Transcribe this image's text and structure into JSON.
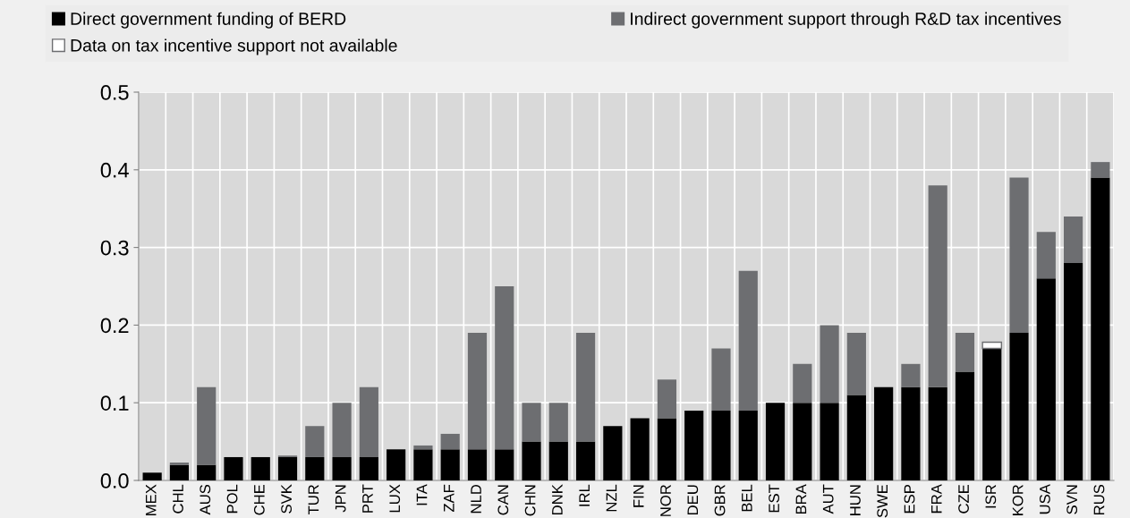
{
  "chart_data": {
    "type": "bar",
    "stacked": true,
    "categories": [
      "MEX",
      "CHL",
      "AUS",
      "POL",
      "CHE",
      "SVK",
      "TUR",
      "JPN",
      "PRT",
      "LUX",
      "ITA",
      "ZAF",
      "NLD",
      "CAN",
      "CHN",
      "DNK",
      "IRL",
      "NZL",
      "FIN",
      "NOR",
      "DEU",
      "GBR",
      "BEL",
      "EST",
      "BRA",
      "AUT",
      "HUN",
      "SWE",
      "ESP",
      "FRA",
      "CZE",
      "ISR",
      "KOR",
      "USA",
      "SVN",
      "RUS"
    ],
    "series": [
      {
        "name": "Direct government funding of BERD",
        "color": "#000000",
        "values": [
          0.01,
          0.02,
          0.02,
          0.03,
          0.03,
          0.03,
          0.03,
          0.03,
          0.03,
          0.04,
          0.04,
          0.04,
          0.04,
          0.04,
          0.05,
          0.05,
          0.05,
          0.07,
          0.08,
          0.08,
          0.09,
          0.09,
          0.09,
          0.1,
          0.1,
          0.1,
          0.11,
          0.12,
          0.12,
          0.12,
          0.14,
          0.17,
          0.19,
          0.26,
          0.28,
          0.39
        ]
      },
      {
        "name": "Indirect government support through R&D tax incentives",
        "color": "#6d6e71",
        "values": [
          0,
          0.003,
          0.1,
          0,
          0,
          0.002,
          0.04,
          0.07,
          0.09,
          0,
          0.005,
          0.02,
          0.15,
          0.21,
          0.05,
          0.05,
          0.14,
          0,
          0,
          0.05,
          0,
          0.08,
          0.18,
          0,
          0.05,
          0.1,
          0.08,
          0,
          0.03,
          0.26,
          0.05,
          null,
          0.2,
          0.06,
          0.06,
          0.02
        ]
      },
      {
        "name": "Data on tax incentive support not available",
        "color": "#ffffff",
        "values": [
          null,
          null,
          null,
          null,
          null,
          null,
          null,
          null,
          null,
          null,
          null,
          null,
          null,
          null,
          null,
          null,
          null,
          null,
          null,
          null,
          null,
          null,
          null,
          null,
          null,
          null,
          null,
          null,
          null,
          null,
          null,
          0.008,
          null,
          null,
          null,
          null
        ]
      }
    ],
    "ylim": [
      0,
      0.5
    ],
    "yticks": [
      {
        "value": 0,
        "label": "0.0"
      },
      0.1,
      0.2,
      0.3,
      0.4,
      0.5
    ],
    "grid": true,
    "legend": "top"
  }
}
